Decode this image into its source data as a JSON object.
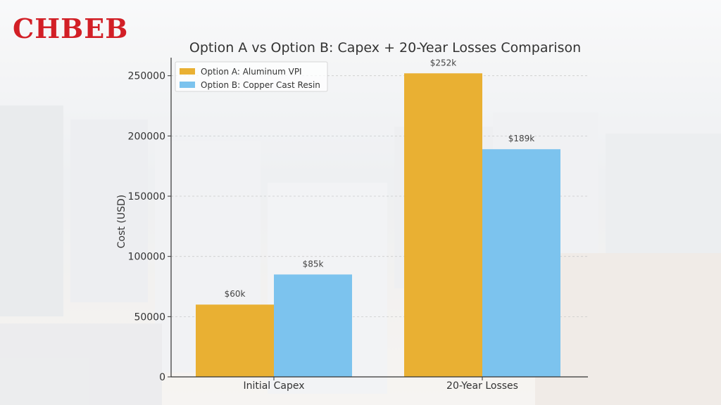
{
  "brand": {
    "logo_text": "CHBEB",
    "logo_color": "#d21f26"
  },
  "chart_data": {
    "type": "bar",
    "title": "Option A vs Option B: Capex + 20-Year Losses Comparison",
    "xlabel": "",
    "ylabel": "Cost (USD)",
    "categories": [
      "Initial Capex",
      "20-Year Losses"
    ],
    "series": [
      {
        "name": "Option A: Aluminum VPI",
        "values": [
          60000,
          252000
        ],
        "labels": [
          "$60k",
          "$252k"
        ],
        "color": "#e9b033"
      },
      {
        "name": "Option B: Copper Cast Resin",
        "values": [
          85000,
          189000
        ],
        "labels": [
          "$85k",
          "$189k"
        ],
        "color": "#7cc3ee"
      }
    ],
    "ylim": [
      0,
      265000
    ],
    "yticks": [
      0,
      50000,
      100000,
      150000,
      200000,
      250000
    ],
    "ytick_labels": [
      "0",
      "50000",
      "100000",
      "150000",
      "200000",
      "250000"
    ],
    "legend": "top-left",
    "grid": true
  }
}
